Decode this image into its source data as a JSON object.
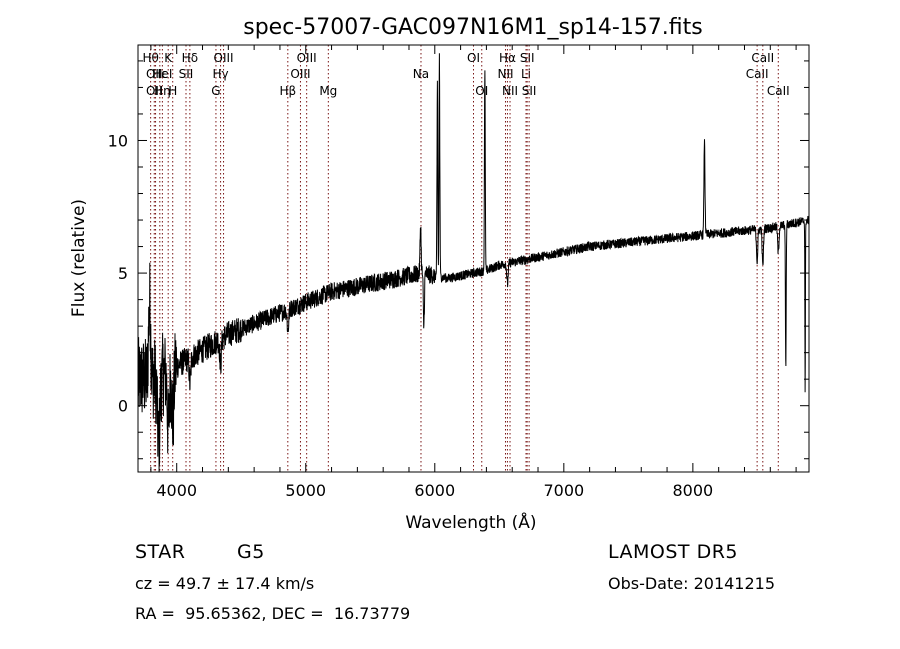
{
  "chart_data": {
    "type": "line",
    "title": "spec-57007-GAC097N16M1_sp14-157.fits",
    "xlabel": "Wavelength (Å)",
    "ylabel": "Flux (relative)",
    "xlim": [
      3700,
      8900
    ],
    "ylim": [
      -2.5,
      13.6
    ],
    "xticks": [
      4000,
      5000,
      6000,
      7000,
      8000
    ],
    "yticks": [
      0,
      5,
      10
    ],
    "grid": false,
    "continuum": {
      "x": [
        3700,
        3800,
        3900,
        4000,
        4100,
        4200,
        4300,
        4400,
        4500,
        4600,
        4700,
        4800,
        4900,
        5000,
        5100,
        5200,
        5300,
        5400,
        5500,
        5600,
        5700,
        5800,
        5900,
        6000,
        6100,
        6200,
        6300,
        6400,
        6500,
        6600,
        6700,
        6800,
        6900,
        7000,
        7200,
        7400,
        7600,
        7800,
        8000,
        8200,
        8400,
        8600,
        8800,
        8900
      ],
      "y": [
        1.0,
        1.0,
        1.2,
        1.5,
        1.8,
        2.1,
        2.4,
        2.7,
        2.9,
        3.1,
        3.3,
        3.5,
        3.7,
        3.9,
        4.1,
        4.3,
        4.4,
        4.5,
        4.6,
        4.7,
        4.8,
        4.9,
        5.0,
        4.9,
        4.8,
        4.9,
        5.0,
        5.1,
        5.3,
        5.4,
        5.5,
        5.6,
        5.7,
        5.8,
        6.0,
        6.1,
        6.2,
        6.3,
        6.4,
        6.5,
        6.6,
        6.7,
        6.9,
        7.0
      ]
    },
    "features": [
      {
        "x": 3790,
        "dy": 3.0,
        "w": 8
      },
      {
        "x": 3860,
        "dy": -2.5,
        "w": 10
      },
      {
        "x": 3935,
        "dy": -2.2,
        "w": 8
      },
      {
        "x": 3970,
        "dy": -2.0,
        "w": 8
      },
      {
        "x": 4103,
        "dy": -1.0,
        "w": 6
      },
      {
        "x": 4340,
        "dy": -1.0,
        "w": 6
      },
      {
        "x": 4862,
        "dy": -0.8,
        "w": 6
      },
      {
        "x": 5890,
        "dy": 1.8,
        "w": 4
      },
      {
        "x": 5915,
        "dy": -2.0,
        "w": 4
      },
      {
        "x": 6020,
        "dy": 7.3,
        "w": 3
      },
      {
        "x": 6036,
        "dy": 8.4,
        "w": 3
      },
      {
        "x": 6388,
        "dy": 7.5,
        "w": 3
      },
      {
        "x": 6563,
        "dy": -0.8,
        "w": 5
      },
      {
        "x": 8090,
        "dy": 3.6,
        "w": 4
      },
      {
        "x": 8498,
        "dy": -1.2,
        "w": 5
      },
      {
        "x": 8542,
        "dy": -1.4,
        "w": 5
      },
      {
        "x": 8662,
        "dy": -1.0,
        "w": 5
      },
      {
        "x": 8720,
        "dy": -5.4,
        "w": 3
      },
      {
        "x": 8870,
        "dy": -6.5,
        "w": 2
      }
    ],
    "line_markers": [
      {
        "x": 3798,
        "labels": [
          {
            "text": "Hθ",
            "row": 1
          }
        ],
        "dash": "#7a1616"
      },
      {
        "x": 3826,
        "labels": [
          {
            "text": "OII",
            "row": 2
          },
          {
            "text": "OII",
            "row": 3
          }
        ],
        "dash": "#7a1616"
      },
      {
        "x": 3836,
        "labels": [],
        "dash": "#7a1616"
      },
      {
        "x": 3869,
        "labels": [
          {
            "text": "Hε",
            "row": 2
          }
        ],
        "dash": "#7a1616"
      },
      {
        "x": 3889,
        "labels": [
          {
            "text": "HeI",
            "row": 2
          },
          {
            "text": "Hη",
            "row": 3
          }
        ],
        "dash": "#7a1616"
      },
      {
        "x": 3934,
        "labels": [
          {
            "text": "K",
            "row": 1
          }
        ],
        "dash": "#7a1616"
      },
      {
        "x": 3969,
        "labels": [
          {
            "text": "H",
            "row": 3
          }
        ],
        "dash": "#7a1616"
      },
      {
        "x": 4072,
        "labels": [
          {
            "text": "SII",
            "row": 2
          }
        ],
        "dash": "#7a1616"
      },
      {
        "x": 4102,
        "labels": [
          {
            "text": "Hδ",
            "row": 1
          }
        ],
        "dash": "#7a1616"
      },
      {
        "x": 4304,
        "labels": [
          {
            "text": "G",
            "row": 3
          }
        ],
        "dash": "#7a1616"
      },
      {
        "x": 4340,
        "labels": [
          {
            "text": "Hγ",
            "row": 2
          }
        ],
        "dash": "#7a1616"
      },
      {
        "x": 4363,
        "labels": [
          {
            "text": "OIII",
            "row": 1
          }
        ],
        "dash": "#7a1616"
      },
      {
        "x": 4861,
        "labels": [
          {
            "text": "Hβ",
            "row": 3
          }
        ],
        "dash": "#7a1616"
      },
      {
        "x": 4959,
        "labels": [
          {
            "text": "OIII",
            "row": 2
          }
        ],
        "dash": "#7a1616"
      },
      {
        "x": 5007,
        "labels": [
          {
            "text": "OIII",
            "row": 1
          }
        ],
        "dash": "#7a1616"
      },
      {
        "x": 5175,
        "labels": [
          {
            "text": "Mg",
            "row": 3
          }
        ],
        "dash": "#7a1616"
      },
      {
        "x": 5893,
        "labels": [
          {
            "text": "Na",
            "row": 2
          }
        ],
        "dash": "#7a1616"
      },
      {
        "x": 6300,
        "labels": [
          {
            "text": "OI",
            "row": 1
          }
        ],
        "dash": "#7a1616"
      },
      {
        "x": 6364,
        "labels": [
          {
            "text": "OI",
            "row": 3
          }
        ],
        "dash": "#7a1616"
      },
      {
        "x": 6548,
        "labels": [
          {
            "text": "NII",
            "row": 2
          }
        ],
        "dash": "#7a1616"
      },
      {
        "x": 6563,
        "labels": [
          {
            "text": "Hα",
            "row": 1
          }
        ],
        "dash": "#7a1616"
      },
      {
        "x": 6583,
        "labels": [
          {
            "text": "NII",
            "row": 3
          }
        ],
        "dash": "#7a1616"
      },
      {
        "x": 6707,
        "labels": [
          {
            "text": "Li",
            "row": 2
          }
        ],
        "dash": "#7a1616"
      },
      {
        "x": 6716,
        "labels": [
          {
            "text": "SII",
            "row": 1
          }
        ],
        "dash": "#7a1616"
      },
      {
        "x": 6731,
        "labels": [
          {
            "text": "SII",
            "row": 3
          }
        ],
        "dash": "#7a1616"
      },
      {
        "x": 8498,
        "labels": [
          {
            "text": "CaII",
            "row": 2
          }
        ],
        "dash": "#7a1616"
      },
      {
        "x": 8542,
        "labels": [
          {
            "text": "CaII",
            "row": 1
          }
        ],
        "dash": "#7a1616"
      },
      {
        "x": 8662,
        "labels": [
          {
            "text": "CaII",
            "row": 3
          }
        ],
        "dash": "#7a1616"
      }
    ]
  },
  "footer": {
    "class_label": "STAR",
    "subclass": "G5",
    "survey": "LAMOST DR5",
    "redshift": "cz = 49.7 ± 17.4 km/s",
    "obs_date": "Obs-Date: 20141215",
    "coords": "RA =  95.65362, DEC =  16.73779"
  }
}
